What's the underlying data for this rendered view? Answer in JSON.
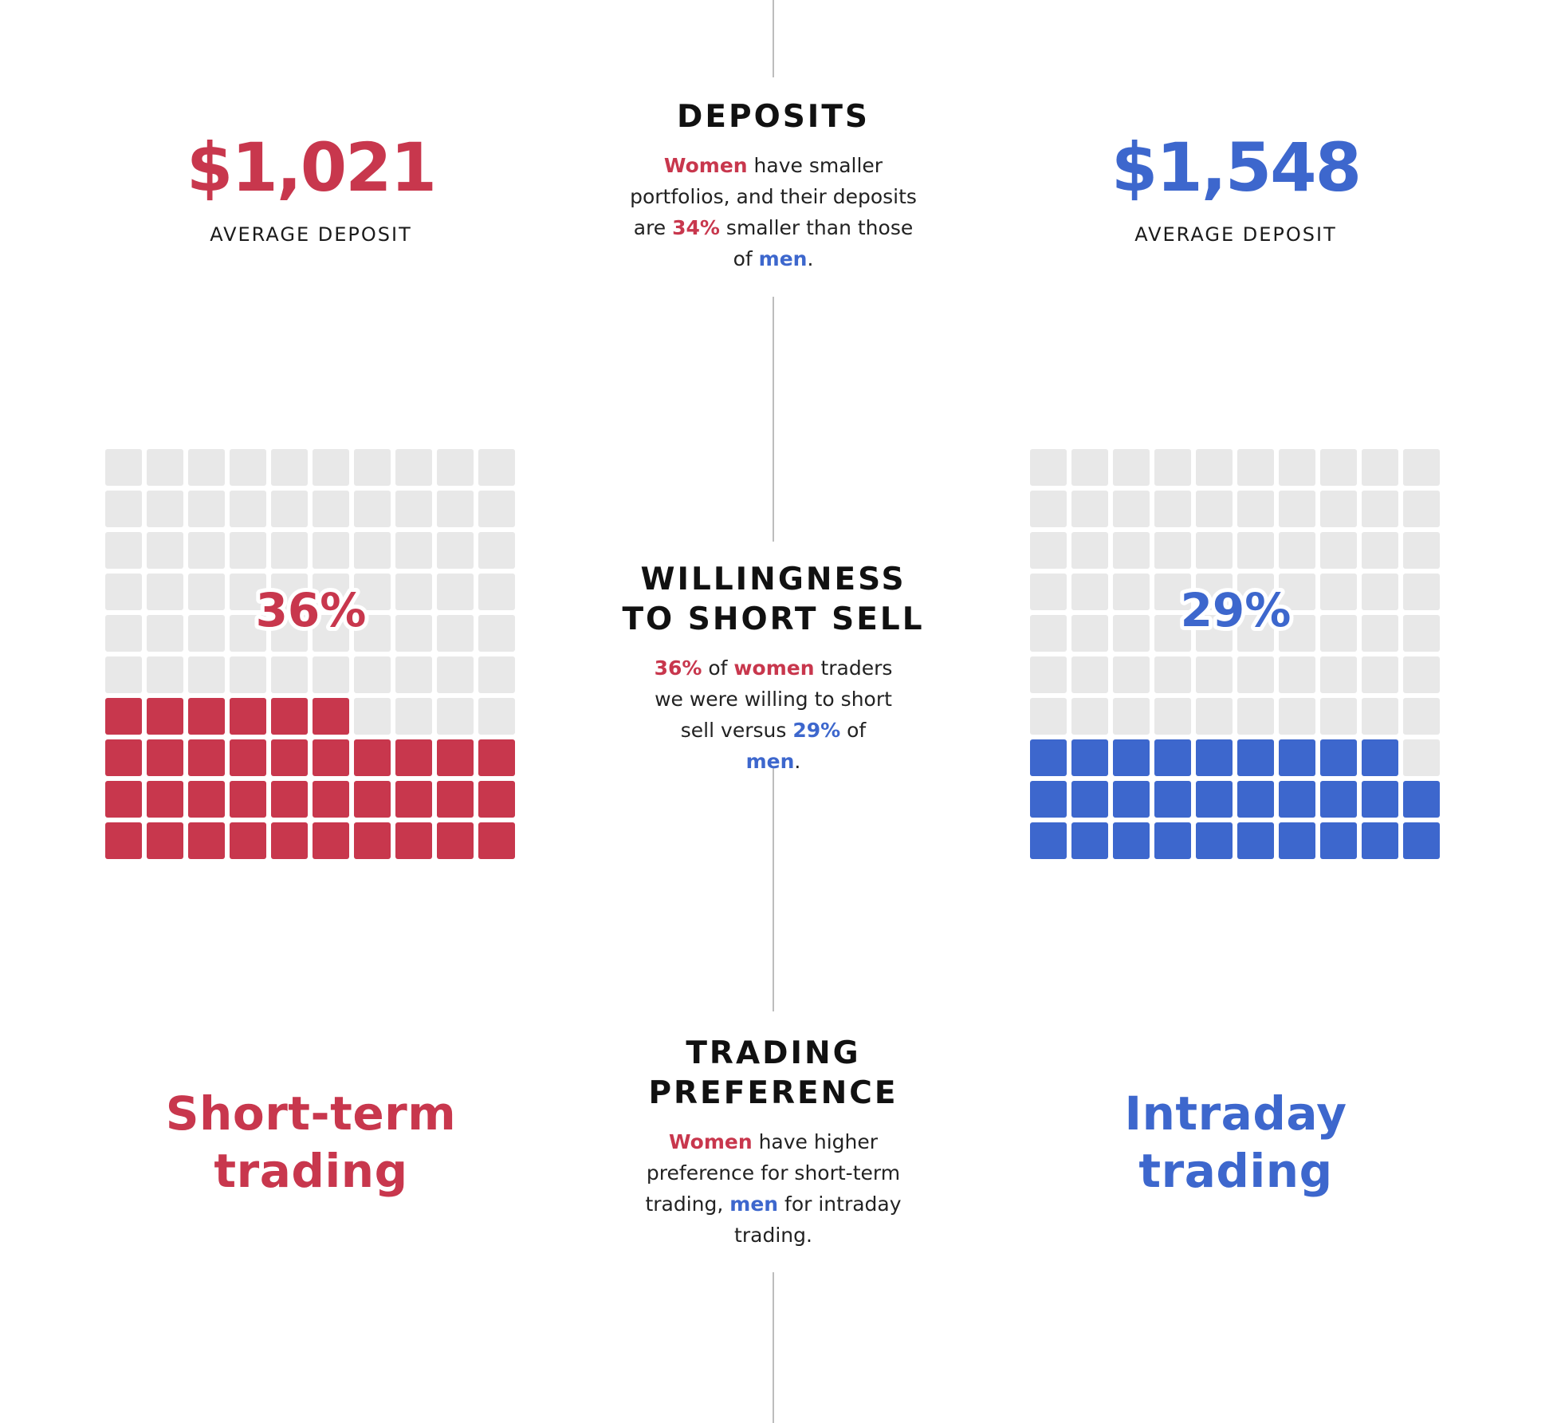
{
  "colors": {
    "women": "#c8374d",
    "men": "#3d67cd",
    "empty": "#e8e8e8"
  },
  "deposits": {
    "title": "DEPOSITS",
    "desc": [
      {
        "t": "Women",
        "s": "w"
      },
      {
        "t": " have smaller portfolios, and their deposits are ",
        "s": ""
      },
      {
        "t": "34%",
        "s": "w"
      },
      {
        "t": " smaller than those of ",
        "s": ""
      },
      {
        "t": "men",
        "s": "m"
      },
      {
        "t": ".",
        "s": ""
      }
    ],
    "women_value": "$1,021",
    "women_label": "AVERAGE DEPOSIT",
    "men_value": "$1,548",
    "men_label": "AVERAGE DEPOSIT"
  },
  "short_sell": {
    "title_line1": "WILLINGNESS",
    "title_line2": "TO SHORT SELL",
    "desc": [
      {
        "t": "36%",
        "s": "w"
      },
      {
        "t": " of ",
        "s": ""
      },
      {
        "t": "women",
        "s": "w"
      },
      {
        "t": " traders we were willing to short sell versus ",
        "s": ""
      },
      {
        "t": "29%",
        "s": "m"
      },
      {
        "t": " of ",
        "s": ""
      },
      {
        "t": "men",
        "s": "m"
      },
      {
        "t": ".",
        "s": ""
      }
    ]
  },
  "chart_data": [
    {
      "type": "waffle",
      "value": 36,
      "total": 100,
      "label": "36%",
      "color": "#c8374d"
    },
    {
      "type": "waffle",
      "value": 29,
      "total": 100,
      "label": "29%",
      "color": "#3d67cd"
    }
  ],
  "trading": {
    "title_line1": "TRADING",
    "title_line2": "PREFERENCE",
    "desc": [
      {
        "t": "Women",
        "s": "w"
      },
      {
        "t": " have higher preference for short-term trading, ",
        "s": ""
      },
      {
        "t": "men",
        "s": "m"
      },
      {
        "t": " for intraday trading.",
        "s": ""
      }
    ],
    "women_line1": "Short-term",
    "women_line2": "trading",
    "men_line1": "Intraday",
    "men_line2": "trading"
  }
}
